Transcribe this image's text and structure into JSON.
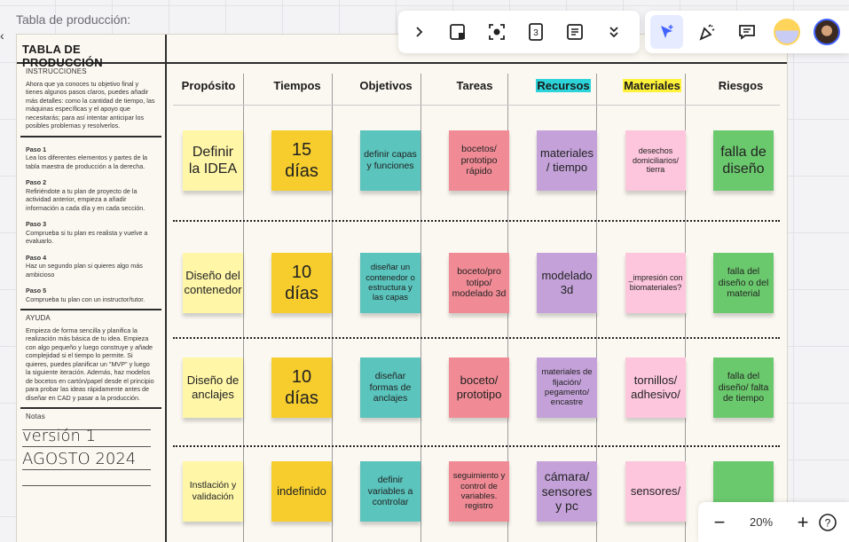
{
  "frame_label": "Tabla de producción:",
  "panel": {
    "title": "TABLA DE PRODUCCIÓN",
    "instructions_heading": "INSTRUCCIONES",
    "instructions_text": "Ahora que ya conoces tu objetivo final y tienes algunos pasos claros, puedes añadir más detalles: como la cantidad de tiempo, las máquinas específicas y el apoyo que necesitarás; para así intentar anticipar los posibles problemas y resolverlos.",
    "steps": [
      {
        "title": "Paso 1",
        "text": "Lea los diferentes elementos y partes de la tabla maestra de producción a la derecha."
      },
      {
        "title": "Paso 2",
        "text": "Refiriéndote a tu plan de proyecto de la actividad anterior, empieza a añadir información a cada día y en cada sección."
      },
      {
        "title": "Paso 3",
        "text": "Comprueba si tu plan es realista y vuelve a evaluarlo."
      },
      {
        "title": "Paso 4",
        "text": "Haz un segundo plan si quieres algo más ambicioso"
      },
      {
        "title": "Paso 5",
        "text": "Comprueba tu plan con un instructor/tutor."
      }
    ],
    "help_heading": "AYUDA",
    "help_text": "Empieza de forma sencilla y planifica la realización más básica de tu idea. Empieza con algo pequeño y luego construye y añade complejidad si el tiempo lo permite. Si quieres, puedes planificar un \"MVP\" y luego la siguiente iteración. Además, haz modelos de bocetos en cartón/papel desde el principio para probar las ideas rápidamente antes de diseñar en CAD y pasar a la producción.",
    "notes_heading": "Notas",
    "notes_line1": "versión 1",
    "notes_line2": "AGOSTO 2024"
  },
  "columns": [
    "Propósito",
    "Tiempos",
    "Objetivos",
    "Tareas",
    "Recursos",
    "Materiales",
    "Riesgos"
  ],
  "column_highlights": {
    "Recursos": "#2cd4d9",
    "Materiales": "#fff23a"
  },
  "rows": [
    [
      "Definir la IDEA",
      "15 días",
      "definir capas y funciones",
      "bocetos/ prototipo rápido",
      "materiales / tiempo",
      "desechos domiciliarios/ tierra",
      "falla de diseño"
    ],
    [
      "Diseño del contenedor",
      "10 días",
      "diseñar un contenedor o estructura y las capas",
      "boceto/pro totipo/ modelado 3d",
      "modelado 3d",
      "_impresión con biomateriales?",
      "falla del diseño o del material"
    ],
    [
      "Diseño de anclajes",
      "10 días",
      "diseñar formas de anclajes",
      "boceto/ prototipo",
      "materiales de fijación/ pegamento/ encastre",
      "tornillos/ adhesivo/",
      "falla del diseño/ falta de tiempo"
    ],
    [
      "Instlación y validación",
      "indefinido",
      "definir variables a controlar",
      "seguimiento y control de variables. registro",
      "cámara/ sensores y pc",
      "sensores/",
      ""
    ]
  ],
  "note_colors": [
    "#fff6a8",
    "#f6cd2d",
    "#5ac4bd",
    "#f08b95",
    "#c4a2d9",
    "#fdc6dc",
    "#6bc96d"
  ],
  "zoom": {
    "value": "20%",
    "minus": "−",
    "plus": "+",
    "help": "?"
  },
  "toolbar_icons": [
    "chevron-right-icon",
    "frame-icon",
    "focus-icon",
    "counter-icon",
    "doc-icon",
    "chevron-double-down-icon"
  ],
  "right_tools_icons": [
    "select-cursor-icon",
    "celebrate-icon",
    "comment-icon",
    "avatar-yellow",
    "avatar-photo"
  ]
}
